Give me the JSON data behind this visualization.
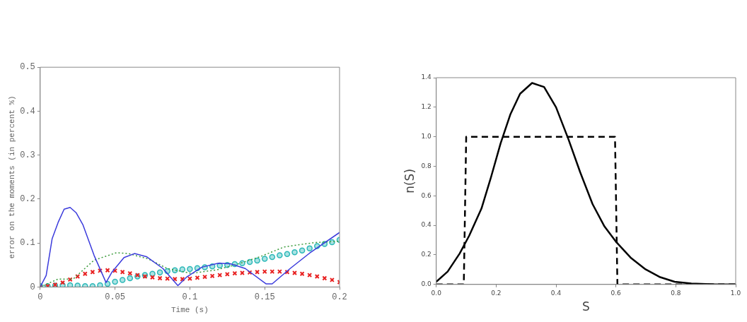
{
  "chart_data": [
    {
      "type": "line",
      "xlabel": "Time (s)",
      "ylabel": "error on the moments (in percent %)",
      "xlim": [
        0,
        0.2
      ],
      "ylim": [
        0,
        0.5
      ],
      "xticks": [
        0,
        0.05,
        0.1,
        0.15,
        0.2
      ],
      "yticks": [
        0,
        0.1,
        0.2,
        0.3,
        0.4,
        0.5
      ],
      "legend": false,
      "series": [
        {
          "color": "#3b3bdc",
          "line_style": "solid",
          "marker": "none",
          "x": [
            0,
            0.004,
            0.008,
            0.012,
            0.016,
            0.02,
            0.024,
            0.0285,
            0.036,
            0.044,
            0.048,
            0.056,
            0.063,
            0.071,
            0.082,
            0.092,
            0.098,
            0.108,
            0.119,
            0.127,
            0.137,
            0.151,
            0.155,
            0.167,
            0.18,
            0.2
          ],
          "values": [
            0,
            0.026,
            0.11,
            0.147,
            0.177,
            0.181,
            0.169,
            0.142,
            0.072,
            0.01,
            0.034,
            0.067,
            0.076,
            0.069,
            0.042,
            0.003,
            0.023,
            0.045,
            0.054,
            0.053,
            0.042,
            0.007,
            0.007,
            0.042,
            0.077,
            0.124
          ]
        },
        {
          "color": "#3a9a3a",
          "line_style": "dotted",
          "marker": "none",
          "x": [
            0,
            0.012,
            0.022,
            0.036,
            0.051,
            0.059,
            0.072,
            0.085,
            0.101,
            0.118,
            0.131,
            0.147,
            0.163,
            0.183,
            0.2
          ],
          "values": [
            0,
            0.018,
            0.018,
            0.061,
            0.078,
            0.076,
            0.064,
            0.042,
            0.031,
            0.039,
            0.051,
            0.069,
            0.091,
            0.101,
            0.104
          ]
        },
        {
          "type": "scatter",
          "color": "#e82020",
          "marker": "cross",
          "x": [
            0,
            0.005,
            0.01,
            0.015,
            0.02,
            0.025,
            0.03,
            0.035,
            0.04,
            0.045,
            0.05,
            0.055,
            0.06,
            0.065,
            0.07,
            0.075,
            0.08,
            0.085,
            0.09,
            0.095,
            0.1,
            0.105,
            0.11,
            0.115,
            0.12,
            0.125,
            0.13,
            0.135,
            0.14,
            0.145,
            0.15,
            0.155,
            0.16,
            0.165,
            0.17,
            0.175,
            0.18,
            0.185,
            0.19,
            0.195,
            0.2
          ],
          "values": [
            0,
            0.002,
            0.005,
            0.01,
            0.017,
            0.024,
            0.03,
            0.034,
            0.037,
            0.038,
            0.037,
            0.034,
            0.031,
            0.027,
            0.024,
            0.022,
            0.02,
            0.019,
            0.018,
            0.018,
            0.019,
            0.021,
            0.023,
            0.025,
            0.027,
            0.029,
            0.031,
            0.032,
            0.033,
            0.034,
            0.035,
            0.035,
            0.035,
            0.034,
            0.032,
            0.03,
            0.027,
            0.024,
            0.02,
            0.016,
            0.011
          ]
        },
        {
          "type": "scatter",
          "color": "#2cb8b8",
          "marker": "circle",
          "x": [
            0,
            0.005,
            0.01,
            0.015,
            0.02,
            0.025,
            0.03,
            0.035,
            0.04,
            0.045,
            0.05,
            0.055,
            0.06,
            0.065,
            0.07,
            0.075,
            0.08,
            0.085,
            0.09,
            0.095,
            0.1,
            0.105,
            0.11,
            0.115,
            0.12,
            0.125,
            0.13,
            0.135,
            0.14,
            0.145,
            0.15,
            0.155,
            0.16,
            0.165,
            0.17,
            0.175,
            0.18,
            0.185,
            0.19,
            0.195,
            0.2
          ],
          "values": [
            0.002,
            0.002,
            0.003,
            0.004,
            0.004,
            0.003,
            0.002,
            0.002,
            0.004,
            0.007,
            0.012,
            0.016,
            0.02,
            0.024,
            0.027,
            0.03,
            0.033,
            0.036,
            0.038,
            0.04,
            0.041,
            0.043,
            0.045,
            0.047,
            0.049,
            0.05,
            0.052,
            0.054,
            0.057,
            0.06,
            0.064,
            0.068,
            0.072,
            0.075,
            0.079,
            0.083,
            0.088,
            0.093,
            0.098,
            0.102,
            0.107
          ]
        }
      ]
    },
    {
      "type": "line",
      "xlabel": "S",
      "ylabel": "n(S)",
      "xlim": [
        0,
        1
      ],
      "ylim": [
        0,
        1.4
      ],
      "xticks": [
        {
          "value": 0,
          "label": "0.0"
        },
        0.2,
        0.4,
        0.6,
        0.8,
        {
          "value": 1,
          "label": "1.0"
        }
      ],
      "yticks": [
        {
          "value": 0,
          "label": "0.0"
        },
        0.2,
        0.4,
        0.6,
        0.8,
        {
          "value": 1,
          "label": "1.0"
        },
        1.2,
        1.4
      ],
      "legend": false,
      "series": [
        {
          "color": "#000000",
          "line_style": "solid",
          "marker": "none",
          "x": [
            0,
            0.038,
            0.078,
            0.11,
            0.151,
            0.183,
            0.215,
            0.248,
            0.28,
            0.32,
            0.36,
            0.4,
            0.441,
            0.481,
            0.522,
            0.562,
            0.602,
            0.651,
            0.699,
            0.748,
            0.796,
            0.852,
            0.933,
            1
          ],
          "values": [
            0.018,
            0.087,
            0.209,
            0.33,
            0.514,
            0.727,
            0.956,
            1.154,
            1.291,
            1.364,
            1.337,
            1.2,
            0.986,
            0.758,
            0.544,
            0.392,
            0.285,
            0.178,
            0.102,
            0.049,
            0.018,
            0.006,
            0,
            0
          ]
        },
        {
          "color": "#000000",
          "line_style": "dashed",
          "marker": "none",
          "x": [
            0,
            0.092,
            0.1,
            0.597,
            0.605,
            1
          ],
          "values": [
            0,
            0,
            1,
            1,
            0,
            0
          ]
        }
      ]
    }
  ]
}
